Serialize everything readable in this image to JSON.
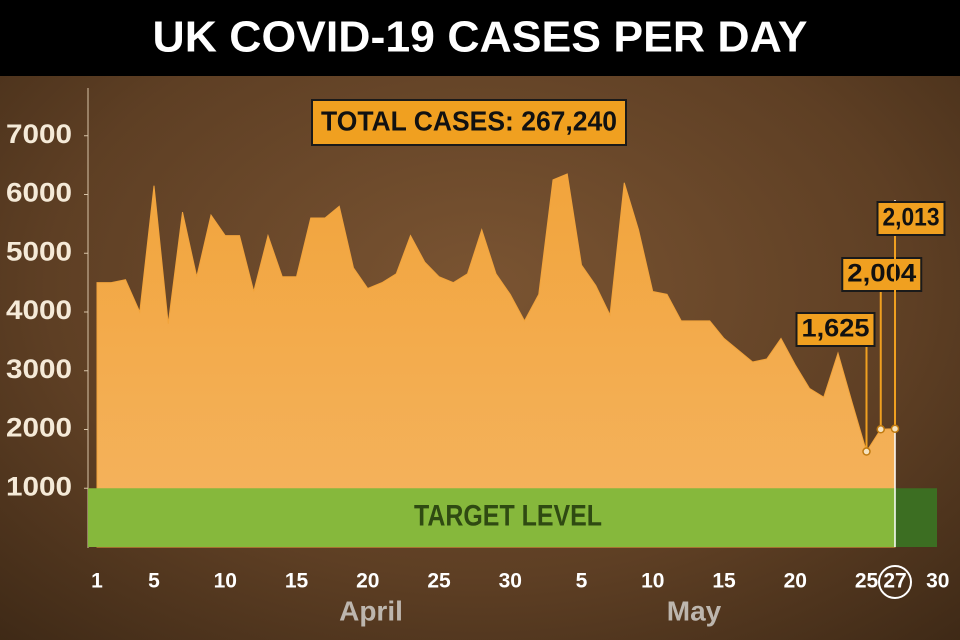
{
  "chart_data": {
    "type": "area",
    "title": "UK COVID-19 CASES PER DAY",
    "annotation": "TOTAL CASES: 267,240",
    "target": {
      "label": "TARGET LEVEL",
      "value": 1000
    },
    "categories": [
      "1",
      null,
      null,
      null,
      "5",
      null,
      null,
      null,
      null,
      "10",
      null,
      null,
      null,
      null,
      "15",
      null,
      null,
      null,
      null,
      "20",
      null,
      null,
      null,
      null,
      "25",
      null,
      null,
      null,
      null,
      "30",
      null,
      null,
      null,
      null,
      "5",
      null,
      null,
      null,
      null,
      "10",
      null,
      null,
      null,
      null,
      "15",
      null,
      null,
      null,
      null,
      "20",
      null,
      null,
      null,
      null,
      "25",
      null,
      "27",
      null,
      null,
      "30"
    ],
    "highlight_category": "27",
    "month_labels": [
      "April",
      "May"
    ],
    "values": [
      4500,
      4500,
      4550,
      4000,
      6150,
      3800,
      5700,
      4600,
      5650,
      5300,
      5300,
      4350,
      5300,
      4600,
      4600,
      5600,
      5600,
      5800,
      4750,
      4400,
      4500,
      4650,
      5300,
      4850,
      4600,
      4500,
      4650,
      5400,
      4650,
      4300,
      3850,
      4300,
      6250,
      6350,
      4800,
      4450,
      3950,
      6200,
      5400,
      4350,
      4300,
      3850,
      3850,
      3850,
      3550,
      3350,
      3150,
      3200,
      3550,
      3100,
      2700,
      2550,
      3300,
      2450,
      1625,
      2004,
      2013,
      null,
      null,
      null
    ],
    "value_labels": [
      null,
      null,
      null,
      null,
      null,
      null,
      null,
      null,
      null,
      null,
      null,
      null,
      null,
      null,
      null,
      null,
      null,
      null,
      null,
      null,
      null,
      null,
      null,
      null,
      null,
      null,
      null,
      null,
      null,
      null,
      null,
      null,
      null,
      null,
      null,
      null,
      null,
      null,
      null,
      null,
      null,
      null,
      null,
      null,
      null,
      null,
      null,
      null,
      null,
      null,
      null,
      null,
      null,
      null,
      "1,625",
      "2,004",
      "2,013",
      null,
      null,
      null
    ],
    "color": "#f2a43c",
    "target_color": "#86b83c",
    "ylim": [
      0,
      8000
    ],
    "yticks": [
      1000,
      2000,
      3000,
      4000,
      5000,
      6000,
      7000
    ]
  }
}
